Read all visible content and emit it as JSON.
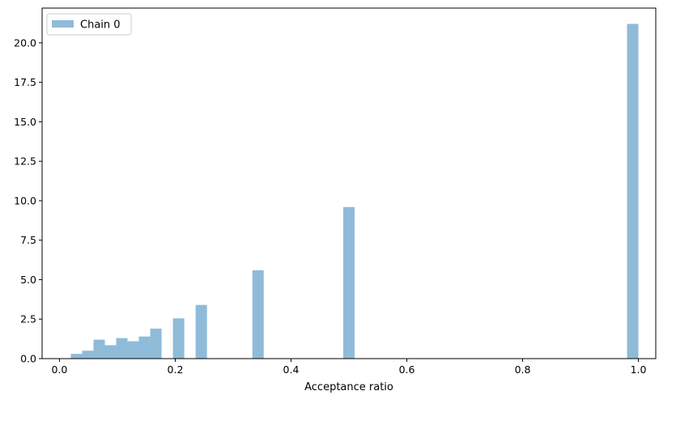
{
  "chart_data": {
    "type": "bar",
    "subtype": "histogram",
    "xlabel": "Acceptance ratio",
    "ylabel": "",
    "title": "",
    "xlim": [
      -0.03,
      1.03
    ],
    "ylim": [
      0,
      22.2
    ],
    "xticks": [
      "0.0",
      "0.2",
      "0.4",
      "0.6",
      "0.8",
      "1.0"
    ],
    "yticks": [
      "0.0",
      "2.5",
      "5.0",
      "7.5",
      "10.0",
      "12.5",
      "15.0",
      "17.5",
      "20.0"
    ],
    "grid": false,
    "legend_position": "top-left",
    "bin_width": 0.0196,
    "series": [
      {
        "name": "Chain 0",
        "color": "#1f77b4",
        "opacity": 0.5,
        "bins": [
          {
            "x0": 0.0196,
            "x1": 0.0392,
            "value": 0.3
          },
          {
            "x0": 0.0392,
            "x1": 0.0588,
            "value": 0.5
          },
          {
            "x0": 0.0588,
            "x1": 0.0784,
            "value": 1.2
          },
          {
            "x0": 0.0784,
            "x1": 0.098,
            "value": 0.85
          },
          {
            "x0": 0.098,
            "x1": 0.1176,
            "value": 1.3
          },
          {
            "x0": 0.1176,
            "x1": 0.1372,
            "value": 1.1
          },
          {
            "x0": 0.1372,
            "x1": 0.1568,
            "value": 1.4
          },
          {
            "x0": 0.1568,
            "x1": 0.1764,
            "value": 1.9
          },
          {
            "x0": 0.196,
            "x1": 0.2156,
            "value": 2.55
          },
          {
            "x0": 0.2352,
            "x1": 0.2548,
            "value": 3.4
          },
          {
            "x0": 0.3332,
            "x1": 0.3528,
            "value": 5.6
          },
          {
            "x0": 0.4902,
            "x1": 0.5098,
            "value": 9.6
          },
          {
            "x0": 0.9804,
            "x1": 1.0,
            "value": 21.2
          }
        ]
      }
    ]
  }
}
